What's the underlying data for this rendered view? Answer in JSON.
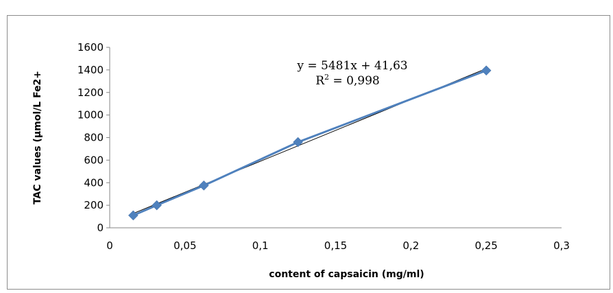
{
  "chart_data": {
    "type": "scatter",
    "title": "",
    "xlabel": "content of capsaicin (mg/ml)",
    "ylabel": "TAC values (µmol/L Fe2+",
    "xlim": [
      0,
      0.3
    ],
    "ylim": [
      0,
      1600
    ],
    "x_ticks": [
      0,
      0.05,
      0.1,
      0.15,
      0.2,
      0.25,
      0.3
    ],
    "x_tick_labels": [
      "0",
      "0,05",
      "0,1",
      "0,15",
      "0,2",
      "0,25",
      "0,3"
    ],
    "y_ticks": [
      0,
      200,
      400,
      600,
      800,
      1000,
      1200,
      1400,
      1600
    ],
    "y_tick_labels": [
      "0",
      "200",
      "400",
      "600",
      "800",
      "1000",
      "1200",
      "1400",
      "1600"
    ],
    "grid": false,
    "legend": "none",
    "series": [
      {
        "x": [
          0.015625,
          0.03125,
          0.0625,
          0.125,
          0.25
        ],
        "y": [
          110,
          200,
          375,
          760,
          1395
        ],
        "color": "#4f81bd",
        "marker": "diamond",
        "line": "connected"
      }
    ],
    "trendline": {
      "slope": 5481,
      "intercept": 41.63,
      "x_range": [
        0.015625,
        0.25
      ],
      "color": "#000000"
    },
    "annotations": {
      "equation": "y = 5481x + 41,63",
      "r2_prefix": "R",
      "r2_sup": "2",
      "r2_value": " = 0,998"
    }
  }
}
